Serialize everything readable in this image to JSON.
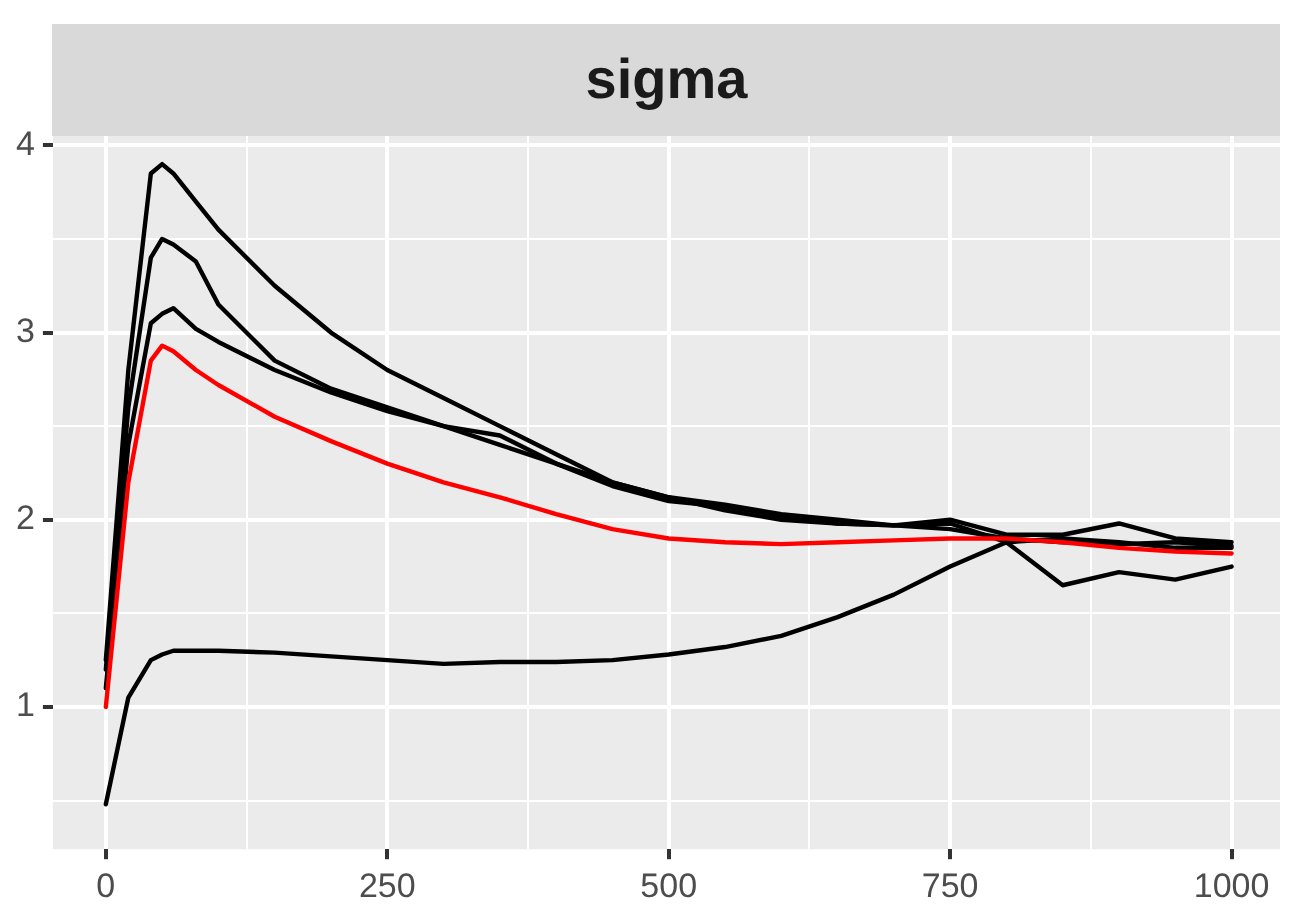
{
  "chart_data": {
    "type": "line",
    "title": "sigma",
    "x": [
      0,
      20,
      40,
      50,
      60,
      80,
      100,
      150,
      200,
      250,
      300,
      350,
      400,
      450,
      500,
      550,
      600,
      650,
      700,
      750,
      800,
      850,
      900,
      950,
      1000
    ],
    "series": [
      {
        "color": "#000000",
        "values": [
          1.25,
          2.8,
          3.85,
          3.9,
          3.85,
          3.7,
          3.55,
          3.25,
          3.0,
          2.8,
          2.65,
          2.5,
          2.35,
          2.2,
          2.12,
          2.08,
          2.03,
          2.0,
          1.97,
          1.95,
          1.9,
          1.88,
          1.87,
          1.88,
          1.86
        ]
      },
      {
        "color": "#000000",
        "values": [
          1.2,
          2.6,
          3.4,
          3.5,
          3.47,
          3.38,
          3.15,
          2.85,
          2.7,
          2.6,
          2.5,
          2.4,
          2.3,
          2.18,
          2.1,
          2.07,
          2.02,
          1.98,
          1.97,
          1.98,
          1.88,
          1.65,
          1.72,
          1.68,
          1.75
        ]
      },
      {
        "color": "#000000",
        "values": [
          1.1,
          2.4,
          3.05,
          3.1,
          3.13,
          3.02,
          2.95,
          2.8,
          2.68,
          2.58,
          2.5,
          2.45,
          2.3,
          2.2,
          2.12,
          2.05,
          2.0,
          1.98,
          1.97,
          2.0,
          1.92,
          1.92,
          1.98,
          1.9,
          1.88
        ]
      },
      {
        "color": "#000000",
        "values": [
          0.48,
          1.05,
          1.25,
          1.28,
          1.3,
          1.3,
          1.3,
          1.29,
          1.27,
          1.25,
          1.23,
          1.24,
          1.24,
          1.25,
          1.28,
          1.32,
          1.38,
          1.48,
          1.6,
          1.75,
          1.88,
          1.9,
          1.88,
          1.85,
          1.85
        ]
      },
      {
        "color": "#ff0000",
        "values": [
          1.0,
          2.2,
          2.85,
          2.93,
          2.9,
          2.8,
          2.72,
          2.55,
          2.42,
          2.3,
          2.2,
          2.12,
          2.03,
          1.95,
          1.9,
          1.88,
          1.87,
          1.88,
          1.89,
          1.9,
          1.9,
          1.88,
          1.85,
          1.83,
          1.82
        ]
      }
    ],
    "xlim": [
      -47,
      1043
    ],
    "ylim": [
      0.24,
      4.05
    ],
    "xticks": [
      0,
      {
        "value": 125,
        "label": null
      },
      250,
      {
        "value": 375,
        "label": null
      },
      500,
      {
        "value": 625,
        "label": null
      },
      750,
      {
        "value": 875,
        "label": null
      },
      1000
    ],
    "yticks": [
      {
        "value": 0.5,
        "label": null
      },
      1,
      {
        "value": 1.5,
        "label": null
      },
      2,
      {
        "value": 2.5,
        "label": null
      },
      3,
      {
        "value": 3.5,
        "label": null
      },
      4
    ],
    "grid": true,
    "legend": false,
    "marker": "none",
    "line_style": "solid"
  }
}
